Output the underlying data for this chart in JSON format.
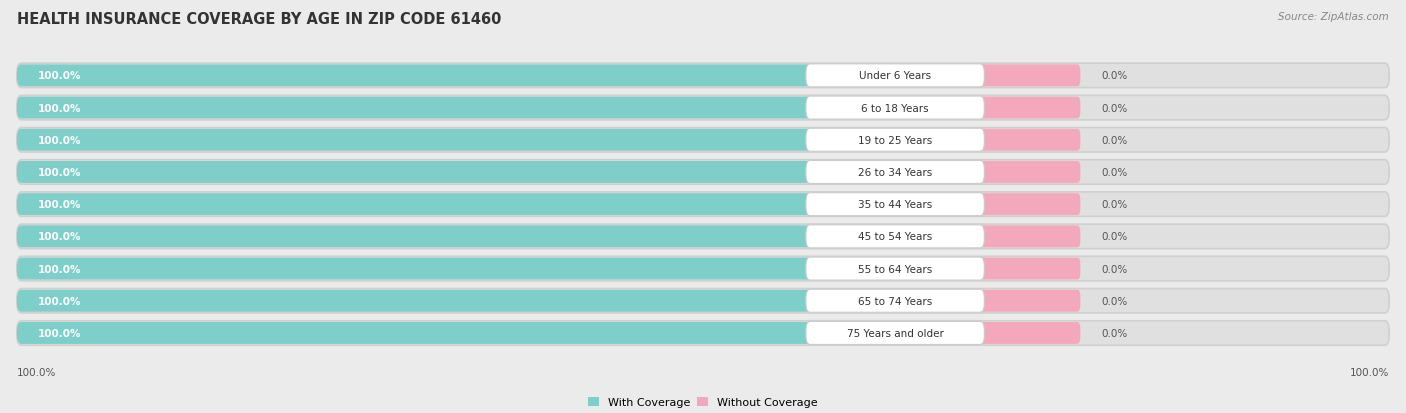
{
  "title": "HEALTH INSURANCE COVERAGE BY AGE IN ZIP CODE 61460",
  "source": "Source: ZipAtlas.com",
  "categories": [
    "Under 6 Years",
    "6 to 18 Years",
    "19 to 25 Years",
    "26 to 34 Years",
    "35 to 44 Years",
    "45 to 54 Years",
    "55 to 64 Years",
    "65 to 74 Years",
    "75 Years and older"
  ],
  "with_coverage": [
    100.0,
    100.0,
    100.0,
    100.0,
    100.0,
    100.0,
    100.0,
    100.0,
    100.0
  ],
  "without_coverage": [
    0.0,
    0.0,
    0.0,
    0.0,
    0.0,
    0.0,
    0.0,
    0.0,
    0.0
  ],
  "color_with": "#7ececa",
  "color_without": "#f4a8bc",
  "background_color": "#ebebeb",
  "bar_bg_color": "#ffffff",
  "row_bg_color": "#e0e0e0",
  "title_fontsize": 10.5,
  "label_fontsize": 7.5,
  "cat_fontsize": 7.5,
  "tick_fontsize": 7.5,
  "legend_fontsize": 8,
  "source_fontsize": 7.5,
  "x_left_label": "100.0%",
  "x_right_label": "100.0%"
}
